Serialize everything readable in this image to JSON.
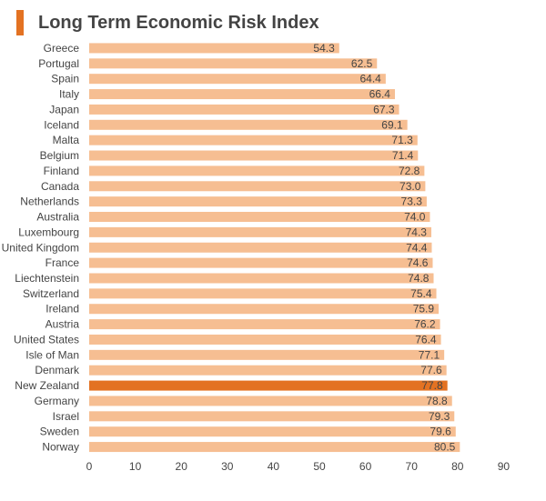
{
  "title": "Long Term Economic Risk Index",
  "colors": {
    "accent": "#e37222",
    "bar": "#f6be92",
    "highlight": "#e37222",
    "text": "#444444"
  },
  "chart_data": {
    "type": "bar",
    "orientation": "horizontal",
    "title": "Long Term Economic Risk Index",
    "xlabel": "",
    "ylabel": "",
    "xlim": [
      0,
      90
    ],
    "xticks": [
      0,
      10,
      20,
      30,
      40,
      50,
      60,
      70,
      80,
      90
    ],
    "grid": false,
    "highlight": "New Zealand",
    "categories": [
      "Greece",
      "Portugal",
      "Spain",
      "Italy",
      "Japan",
      "Iceland",
      "Malta",
      "Belgium",
      "Finland",
      "Canada",
      "Netherlands",
      "Australia",
      "Luxembourg",
      "United Kingdom",
      "France",
      "Liechtenstein",
      "Switzerland",
      "Ireland",
      "Austria",
      "United States",
      "Isle of Man",
      "Denmark",
      "New Zealand",
      "Germany",
      "Israel",
      "Sweden",
      "Norway"
    ],
    "values": [
      54.3,
      62.5,
      64.4,
      66.4,
      67.3,
      69.1,
      71.3,
      71.4,
      72.8,
      73.0,
      73.3,
      74.0,
      74.3,
      74.4,
      74.6,
      74.8,
      75.4,
      75.9,
      76.2,
      76.4,
      77.1,
      77.6,
      77.8,
      78.8,
      79.3,
      79.6,
      80.5
    ],
    "labels": [
      "54.3",
      "62.5",
      "64.4",
      "66.4",
      "67.3",
      "69.1",
      "71.3",
      "71.4",
      "72.8",
      "73.0",
      "73.3",
      "74.0",
      "74.3",
      "74.4",
      "74.6",
      "74.8",
      "75.4",
      "75.9",
      "76.2",
      "76.4",
      "77.1",
      "77.6",
      "77.8",
      "78.8",
      "79.3",
      "79.6",
      "80.5"
    ]
  }
}
